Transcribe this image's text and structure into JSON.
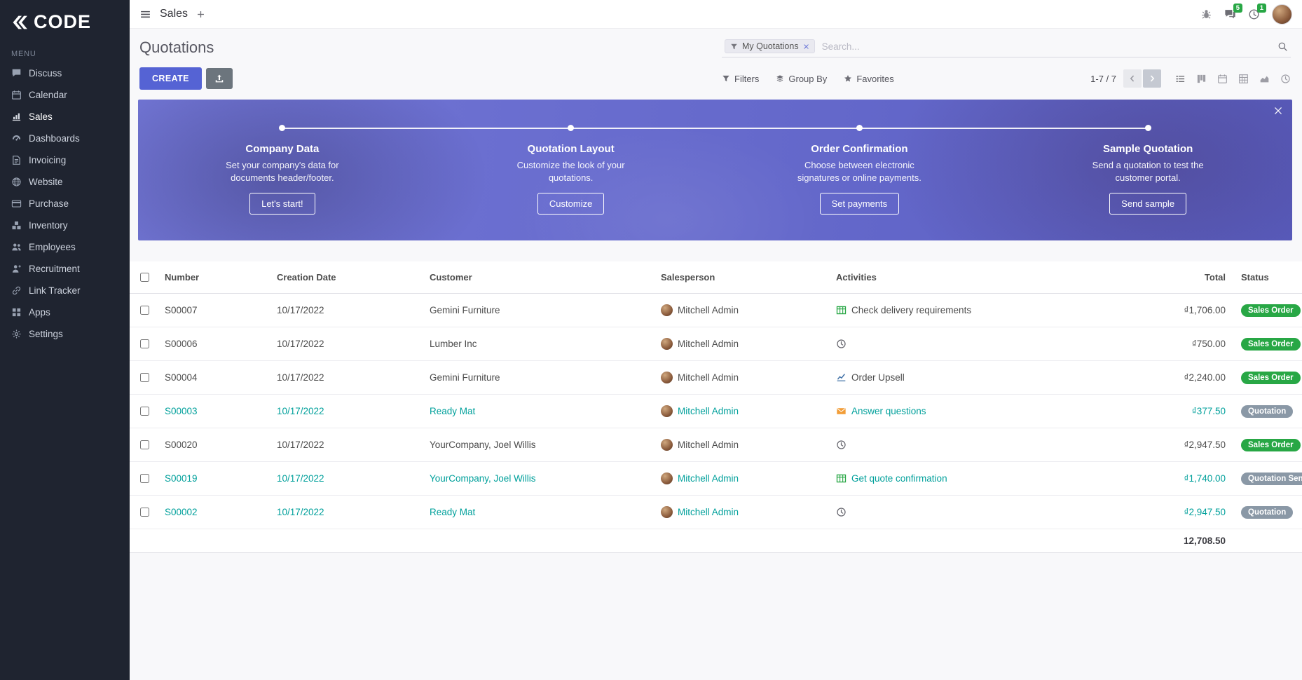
{
  "colors": {
    "primary": "#5563d4",
    "sidebar_bg": "#1f2430",
    "teal": "#00a09b",
    "green": "#28a745",
    "gray_badge": "#8a98a6",
    "banner_from": "#7276d6",
    "banner_to": "#5a5ec2"
  },
  "sidebar": {
    "logo": "CODE",
    "menu_label": "MENU",
    "items": [
      {
        "label": "Discuss",
        "icon": "discuss",
        "active": false
      },
      {
        "label": "Calendar",
        "icon": "calendar",
        "active": false
      },
      {
        "label": "Sales",
        "icon": "sales",
        "active": true
      },
      {
        "label": "Dashboards",
        "icon": "dashboards",
        "active": false
      },
      {
        "label": "Invoicing",
        "icon": "invoicing",
        "active": false
      },
      {
        "label": "Website",
        "icon": "website",
        "active": false
      },
      {
        "label": "Purchase",
        "icon": "purchase",
        "active": false
      },
      {
        "label": "Inventory",
        "icon": "inventory",
        "active": false
      },
      {
        "label": "Employees",
        "icon": "employees",
        "active": false
      },
      {
        "label": "Recruitment",
        "icon": "recruitment",
        "active": false
      },
      {
        "label": "Link Tracker",
        "icon": "link",
        "active": false
      },
      {
        "label": "Apps",
        "icon": "apps",
        "active": false
      },
      {
        "label": "Settings",
        "icon": "settings",
        "active": false
      }
    ]
  },
  "topbar": {
    "app_name": "Sales",
    "messages_badge": "5",
    "activities_badge": "1"
  },
  "control_panel": {
    "title": "Quotations",
    "search_facet": "My Quotations",
    "search_placeholder": "Search...",
    "create_label": "CREATE",
    "filters_label": "Filters",
    "group_by_label": "Group By",
    "favorites_label": "Favorites",
    "pager": "1-7 / 7"
  },
  "banner": {
    "steps": [
      {
        "title": "Company Data",
        "description": "Set your company's data for documents header/footer.",
        "button": "Let's start!"
      },
      {
        "title": "Quotation Layout",
        "description": "Customize the look of your quotations.",
        "button": "Customize"
      },
      {
        "title": "Order Confirmation",
        "description": "Choose between electronic signatures or online payments.",
        "button": "Set payments"
      },
      {
        "title": "Sample Quotation",
        "description": "Send a quotation to test the customer portal.",
        "button": "Send sample"
      }
    ]
  },
  "table": {
    "columns": [
      "Number",
      "Creation Date",
      "Customer",
      "Salesperson",
      "Activities",
      "Total",
      "Status"
    ],
    "rows": [
      {
        "number": "S00007",
        "creation_date": "10/17/2022",
        "customer": "Gemini Furniture",
        "salesperson": "Mitchell Admin",
        "activity_label": "Check delivery requirements",
        "activity_icon": "spreadsheet",
        "total": "₫1,706.00",
        "status": "Sales Order",
        "status_color": "green",
        "highlighted": false
      },
      {
        "number": "S00006",
        "creation_date": "10/17/2022",
        "customer": "Lumber Inc",
        "salesperson": "Mitchell Admin",
        "activity_label": "",
        "activity_icon": "clock",
        "total": "₫750.00",
        "status": "Sales Order",
        "status_color": "green",
        "highlighted": false
      },
      {
        "number": "S00004",
        "creation_date": "10/17/2022",
        "customer": "Gemini Furniture",
        "salesperson": "Mitchell Admin",
        "activity_label": "Order Upsell",
        "activity_icon": "chart",
        "total": "₫2,240.00",
        "status": "Sales Order",
        "status_color": "green",
        "highlighted": false
      },
      {
        "number": "S00003",
        "creation_date": "10/17/2022",
        "customer": "Ready Mat",
        "salesperson": "Mitchell Admin",
        "activity_label": "Answer questions",
        "activity_icon": "envelope",
        "total": "₫377.50",
        "status": "Quotation",
        "status_color": "gray",
        "highlighted": true
      },
      {
        "number": "S00020",
        "creation_date": "10/17/2022",
        "customer": "YourCompany, Joel Willis",
        "salesperson": "Mitchell Admin",
        "activity_label": "",
        "activity_icon": "clock",
        "total": "₫2,947.50",
        "status": "Sales Order",
        "status_color": "green",
        "highlighted": false
      },
      {
        "number": "S00019",
        "creation_date": "10/17/2022",
        "customer": "YourCompany, Joel Willis",
        "salesperson": "Mitchell Admin",
        "activity_label": "Get quote confirmation",
        "activity_icon": "spreadsheet",
        "total": "₫1,740.00",
        "status": "Quotation Sent",
        "status_color": "gray",
        "highlighted": true
      },
      {
        "number": "S00002",
        "creation_date": "10/17/2022",
        "customer": "Ready Mat",
        "salesperson": "Mitchell Admin",
        "activity_label": "",
        "activity_icon": "clock",
        "total": "₫2,947.50",
        "status": "Quotation",
        "status_color": "gray",
        "highlighted": true
      }
    ],
    "footer_total": "12,708.50"
  }
}
